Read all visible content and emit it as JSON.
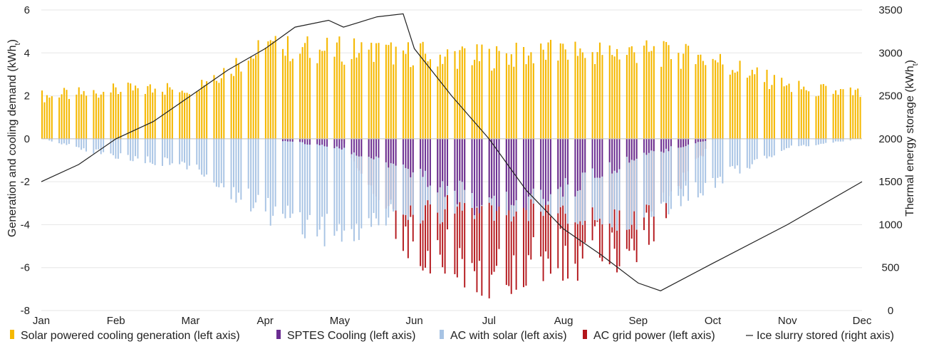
{
  "chart_data": {
    "type": "bar",
    "title": "",
    "x": {
      "categories": [
        "Jan",
        "Feb",
        "Mar",
        "Apr",
        "May",
        "Jun",
        "Jul",
        "Aug",
        "Sep",
        "Oct",
        "Nov",
        "Dec"
      ]
    },
    "y_left": {
      "label_main": "Generation and cooling demand (kWh",
      "label_sub": "t",
      "label_close": ")",
      "min": -8,
      "max": 6,
      "step": 2,
      "ticks": [
        "-8",
        "-6",
        "-4",
        "-2",
        "0",
        "2",
        "4",
        "6"
      ]
    },
    "y_right": {
      "label_main": "Thermal energy storage (kWh",
      "label_sub": "t",
      "label_close": ")",
      "min": 0,
      "max": 3500,
      "step": 500,
      "ticks": [
        "0",
        "500",
        "1000",
        "1500",
        "2000",
        "2500",
        "3000",
        "3500"
      ]
    },
    "colors": {
      "solar": "#f5b800",
      "sptes": "#6a2c91",
      "ac_solar": "#a7c3e4",
      "ac_grid": "#b3161b",
      "ice": "#222222",
      "grid": "#e6e6e6"
    },
    "legend": [
      {
        "key": "solar",
        "label": "Solar powered cooling generation (left axis)"
      },
      {
        "key": "sptes",
        "label": "SPTES Cooling (left axis)"
      },
      {
        "key": "ac_solar",
        "label": "AC with solar (left axis)"
      },
      {
        "key": "ac_grid",
        "label": "AC grid power   (left axis)"
      },
      {
        "key": "ice",
        "label": "Ice slurry stored (right axis)"
      }
    ],
    "series_monthly_envelope": {
      "solar_generation_max_kwh": [
        2.3,
        2.6,
        2.8,
        4.9,
        4.8,
        4.6,
        4.4,
        4.7,
        4.7,
        4.3,
        2.8,
        2.4
      ],
      "sptes_cooling_min_kwh": [
        0.0,
        0.0,
        0.0,
        0.0,
        -0.5,
        -2.0,
        -4.0,
        -3.0,
        -1.0,
        0.0,
        0.0,
        0.0
      ],
      "ac_solar_min_kwh": [
        0.0,
        -1.0,
        -1.5,
        -4.0,
        -5.3,
        -4.0,
        -4.0,
        -4.0,
        -4.5,
        -2.4,
        -0.5,
        0.0
      ],
      "ac_grid_min_kwh": [
        0.0,
        0.0,
        0.0,
        0.0,
        0.0,
        -6.4,
        -7.5,
        -6.8,
        -6.0,
        0.0,
        0.0,
        0.0
      ]
    },
    "ice_slurry_stored_kwh": [
      {
        "x": 0.0,
        "y": 1500
      },
      {
        "x": 0.5,
        "y": 1700
      },
      {
        "x": 1.0,
        "y": 2000
      },
      {
        "x": 1.5,
        "y": 2200
      },
      {
        "x": 2.0,
        "y": 2500
      },
      {
        "x": 2.5,
        "y": 2800
      },
      {
        "x": 3.0,
        "y": 3050
      },
      {
        "x": 3.4,
        "y": 3300
      },
      {
        "x": 3.85,
        "y": 3380
      },
      {
        "x": 4.05,
        "y": 3300
      },
      {
        "x": 4.5,
        "y": 3420
      },
      {
        "x": 4.85,
        "y": 3455
      },
      {
        "x": 5.0,
        "y": 3050
      },
      {
        "x": 5.5,
        "y": 2500
      },
      {
        "x": 6.0,
        "y": 2000
      },
      {
        "x": 6.5,
        "y": 1400
      },
      {
        "x": 7.0,
        "y": 950
      },
      {
        "x": 7.5,
        "y": 650
      },
      {
        "x": 8.0,
        "y": 320
      },
      {
        "x": 8.3,
        "y": 230
      },
      {
        "x": 9.0,
        "y": 550
      },
      {
        "x": 10.0,
        "y": 1000
      },
      {
        "x": 11.0,
        "y": 1500
      }
    ]
  }
}
